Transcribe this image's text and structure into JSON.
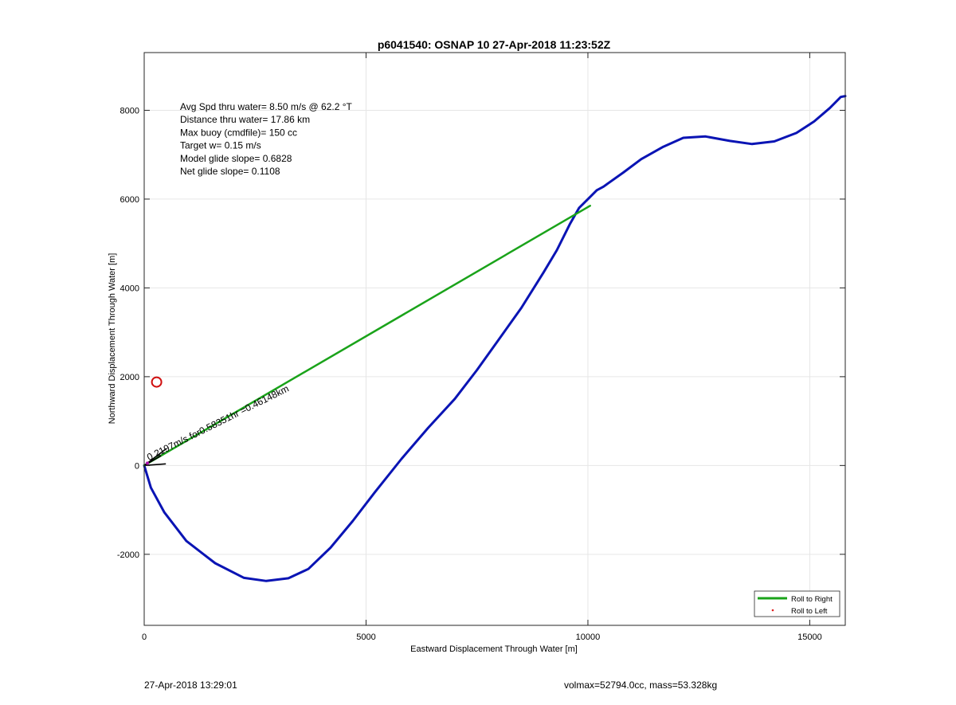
{
  "chart_data": {
    "type": "line",
    "title": "p6041540: OSNAP 10 27-Apr-2018 11:23:52Z",
    "xlabel": "Eastward Displacement Through Water [m]",
    "ylabel": "Northward Displacement Through Water [m]",
    "xlim": [
      0,
      15800
    ],
    "ylim": [
      -3600,
      9300
    ],
    "xticks": [
      0,
      5000,
      10000,
      15000
    ],
    "yticks": [
      -2000,
      0,
      2000,
      4000,
      6000,
      8000
    ],
    "xtick_labels": [
      "0",
      "5000",
      "10000",
      "15000"
    ],
    "ytick_labels": [
      "-2000",
      "0",
      "2000",
      "4000",
      "6000",
      "8000"
    ],
    "grid": true,
    "legend_position": "bottom-right",
    "legend": [
      {
        "label": "Roll to Right",
        "style": "line",
        "color": "#1aa31a"
      },
      {
        "label": "Roll to Left",
        "style": "point",
        "color": "#e02020"
      }
    ],
    "series": [
      {
        "color": "#0a14b4",
        "x": [
          0,
          150,
          450,
          950,
          1600,
          2250,
          2750,
          3250,
          3700,
          4200,
          4700,
          5200,
          5800,
          6400,
          7000,
          7500,
          8000,
          8500,
          9000,
          9300,
          9600,
          9800,
          10000,
          10200,
          10350,
          10800,
          11200,
          11700,
          12150,
          12650,
          13200,
          13700,
          14200,
          14700,
          15100,
          15450,
          15700,
          15800
        ],
        "y": [
          0,
          -500,
          -1050,
          -1700,
          -2200,
          -2530,
          -2600,
          -2540,
          -2330,
          -1850,
          -1250,
          -600,
          150,
          850,
          1500,
          2150,
          2850,
          3550,
          4350,
          4850,
          5450,
          5800,
          6000,
          6200,
          6280,
          6600,
          6900,
          7180,
          7380,
          7410,
          7310,
          7240,
          7300,
          7490,
          7750,
          8050,
          8300,
          8320
        ]
      },
      {
        "color": "#1aa31a",
        "x": [
          0,
          10050
        ],
        "y": [
          0,
          5850
        ]
      }
    ],
    "markers": [
      {
        "type": "circle",
        "color": "#d01010",
        "x": 280,
        "y": 1880
      }
    ],
    "current_arrow": {
      "label": "0.2197m/s for0.58351hr =0.46148km",
      "x": [
        0,
        380,
        500
      ],
      "y": [
        0,
        220,
        380
      ]
    },
    "annotations": [
      "Avg Spd thru water=  8.50 m/s @  62.2 °T",
      "Distance thru water= 17.86 km",
      "Max buoy (cmdfile)= 150 cc",
      "Target w= 0.15 m/s",
      "Model glide slope= 0.6828",
      "Net glide slope= 0.1108"
    ]
  },
  "footer": {
    "timestamp": "27-Apr-2018 13:29:01",
    "vol_mass": "volmax=52794.0cc, mass=53.328kg"
  }
}
